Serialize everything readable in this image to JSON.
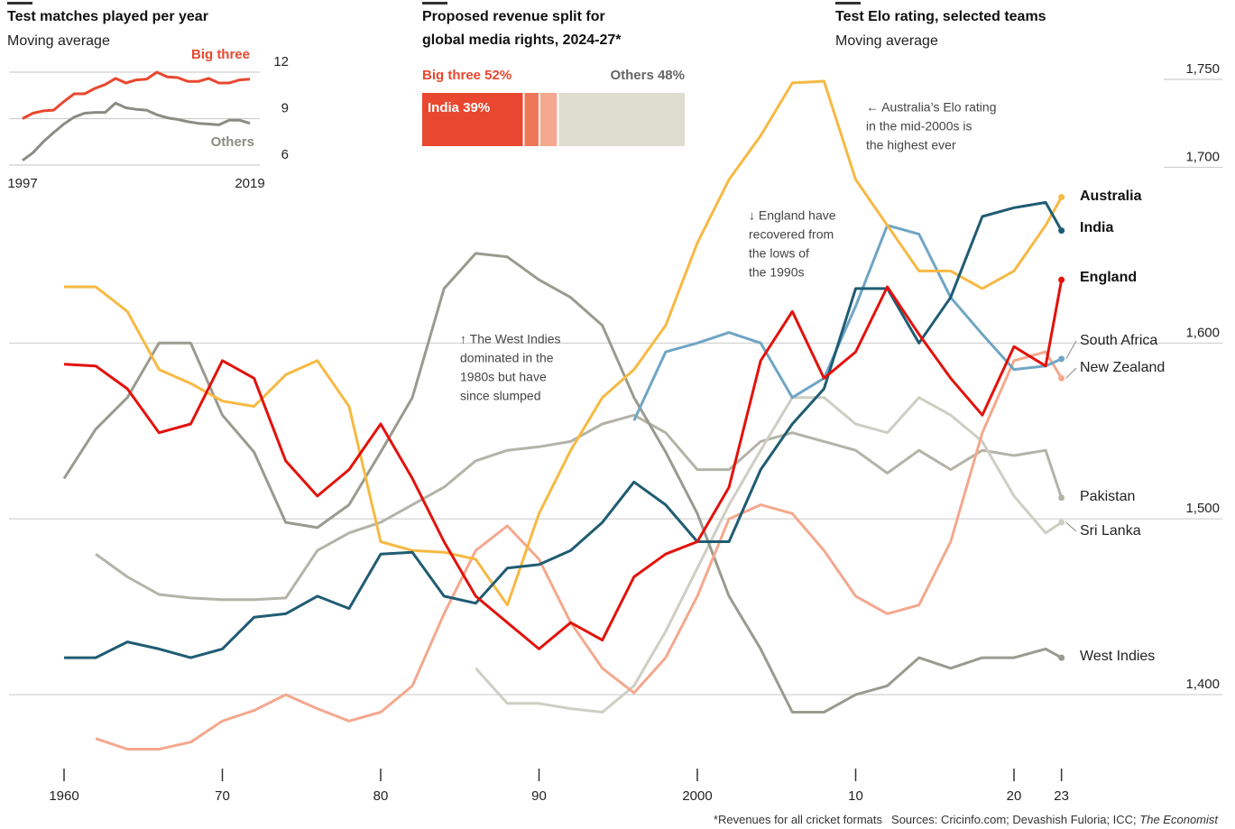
{
  "chart_data": [
    {
      "type": "line",
      "title": "Test matches played per year",
      "subtitle": "Moving average",
      "x": [
        1997,
        1998,
        1999,
        2000,
        2001,
        2002,
        2003,
        2004,
        2005,
        2006,
        2007,
        2008,
        2009,
        2010,
        2011,
        2012,
        2013,
        2014,
        2015,
        2016,
        2017,
        2018,
        2019
      ],
      "series": [
        {
          "name": "Big three",
          "color": "#e9472f",
          "values": [
            9.0,
            9.35,
            9.5,
            9.55,
            10.1,
            10.6,
            10.6,
            10.95,
            11.2,
            11.6,
            11.3,
            11.5,
            11.55,
            12.0,
            11.7,
            11.65,
            11.4,
            11.4,
            11.6,
            11.3,
            11.3,
            11.5,
            11.55
          ]
        },
        {
          "name": "Others",
          "color": "#8c8c84",
          "values": [
            6.3,
            6.8,
            7.5,
            8.1,
            8.65,
            9.1,
            9.35,
            9.4,
            9.4,
            10.0,
            9.7,
            9.6,
            9.55,
            9.25,
            9.05,
            8.95,
            8.8,
            8.7,
            8.65,
            8.6,
            8.9,
            8.9,
            8.7
          ]
        }
      ],
      "xlim": [
        1997,
        2019
      ],
      "xticks": [
        1997,
        2019
      ],
      "ylim": [
        6,
        12
      ],
      "yticks": [
        6,
        9,
        12
      ],
      "grid": true
    },
    {
      "type": "stacked-bar",
      "title": [
        "Proposed revenue split for",
        "global media rights, 2024-27*"
      ],
      "values": [
        39,
        6,
        7,
        48
      ],
      "value_labels": [
        "India 39%",
        null,
        null,
        null
      ],
      "colors": [
        "#e9472f",
        "#ef7659",
        "#f4a88d",
        "#dfdcd0"
      ],
      "groups": [
        {
          "label": "Big three 52%",
          "value": 52,
          "color": "#e9472f"
        },
        {
          "label": "Others 48%",
          "value": 48,
          "color": "#666"
        }
      ],
      "xlim": [
        0,
        100
      ]
    },
    {
      "type": "line",
      "title": "Test Elo rating, selected teams",
      "subtitle": "Moving average",
      "x": [
        1960,
        1962,
        1964,
        1966,
        1968,
        1970,
        1972,
        1974,
        1976,
        1978,
        1980,
        1982,
        1984,
        1986,
        1988,
        1990,
        1992,
        1994,
        1996,
        1998,
        2000,
        2002,
        2004,
        2006,
        2008,
        2010,
        2012,
        2014,
        2016,
        2018,
        2020,
        2022,
        2023
      ],
      "series": [
        {
          "name": "Pakistan",
          "color": "#b4b3a8",
          "values": [
            null,
            1480,
            1467,
            1457,
            1455,
            1454,
            1454,
            1455,
            1482,
            1492,
            1498,
            1508,
            1518,
            1533,
            1539,
            1541,
            1544,
            1554,
            1559,
            1549,
            1528,
            1528,
            1544,
            1549,
            1544,
            1539,
            1526,
            1539,
            1528,
            1539,
            1536,
            1539,
            1512
          ]
        },
        {
          "name": "Sri Lanka",
          "color": "#cfcec4",
          "values": [
            null,
            null,
            null,
            null,
            null,
            null,
            null,
            null,
            null,
            null,
            null,
            null,
            null,
            1415,
            1395,
            1395,
            1392,
            1390,
            1405,
            1436,
            1472,
            1508,
            1539,
            1569,
            1569,
            1554,
            1549,
            1569,
            1559,
            1544,
            1513,
            1492,
            1498
          ]
        },
        {
          "name": "West Indies",
          "color": "#9a9a8f",
          "values": [
            1523,
            1551,
            1569,
            1600,
            1600,
            1559,
            1538,
            1498,
            1495,
            1508,
            1538,
            1569,
            1631,
            1651,
            1649,
            1636,
            1626,
            1610,
            1569,
            1538,
            1503,
            1456,
            1426,
            1390,
            1390,
            1400,
            1405,
            1421,
            1415,
            1421,
            1421,
            1426,
            1421
          ]
        },
        {
          "name": "New Zealand",
          "color": "#f4a88d",
          "values": [
            null,
            1375,
            1369,
            1369,
            1373,
            1385,
            1391,
            1400,
            1392,
            1385,
            1390,
            1405,
            1446,
            1482,
            1496,
            1477,
            1441,
            1415,
            1401,
            1421,
            1456,
            1500,
            1508,
            1503,
            1482,
            1456,
            1446,
            1451,
            1487,
            1549,
            1590,
            1595,
            1580
          ]
        },
        {
          "name": "South Africa",
          "color": "#6fa5c4",
          "values": [
            null,
            null,
            null,
            null,
            null,
            null,
            null,
            null,
            null,
            null,
            null,
            null,
            null,
            null,
            null,
            null,
            null,
            null,
            1556,
            1595,
            1600,
            1606,
            1600,
            1569,
            1580,
            1621,
            1667,
            1662,
            1626,
            1605,
            1585,
            1587,
            1591
          ]
        },
        {
          "name": "Australia",
          "color": "#f7b943",
          "bold": true,
          "values": [
            1632,
            1632,
            1618,
            1585,
            1577,
            1567,
            1564,
            1582,
            1590,
            1564,
            1487,
            1482,
            1481,
            1477,
            1451,
            1503,
            1539,
            1569,
            1585,
            1610,
            1657,
            1693,
            1718,
            1748,
            1749,
            1693,
            1667,
            1641,
            1641,
            1631,
            1641,
            1667,
            1683
          ]
        },
        {
          "name": "India",
          "color": "#1f5c73",
          "bold": true,
          "values": [
            1421,
            1421,
            1430,
            1426,
            1421,
            1426,
            1444,
            1446,
            1456,
            1449,
            1480,
            1481,
            1456,
            1452,
            1472,
            1474,
            1482,
            1498,
            1521,
            1508,
            1487,
            1487,
            1528,
            1554,
            1574,
            1631,
            1631,
            1600,
            1626,
            1672,
            1677,
            1680,
            1664
          ]
        },
        {
          "name": "England",
          "color": "#e3120b",
          "bold": true,
          "values": [
            1588,
            1587,
            1574,
            1549,
            1554,
            1590,
            1580,
            1533,
            1513,
            1528,
            1554,
            1523,
            1487,
            1456,
            1441,
            1426,
            1441,
            1431,
            1467,
            1480,
            1487,
            1518,
            1590,
            1618,
            1580,
            1595,
            1632,
            1605,
            1580,
            1559,
            1598,
            1587,
            1636
          ]
        }
      ],
      "xlim": [
        1958,
        2025
      ],
      "xticks": [
        {
          "value": 1960,
          "label": "1960"
        },
        {
          "value": 1970,
          "label": "70"
        },
        {
          "value": 1980,
          "label": "80"
        },
        {
          "value": 1990,
          "label": "90"
        },
        {
          "value": 2000,
          "label": "2000"
        },
        {
          "value": 2010,
          "label": "10"
        },
        {
          "value": 2020,
          "label": "20"
        },
        {
          "value": 2023,
          "label": "23"
        }
      ],
      "ylim": [
        1360,
        1765
      ],
      "yticks": [
        {
          "value": 1400,
          "label": "1,400"
        },
        {
          "value": 1500,
          "label": "1,500"
        },
        {
          "value": 1600,
          "label": "1,600"
        },
        {
          "value": 1700,
          "label": "1,700"
        },
        {
          "value": 1750,
          "label": "1,750"
        }
      ],
      "grid": true,
      "annotations": [
        [
          "↑ The West Indies",
          "dominated in the",
          "1980s but have",
          "since slumped"
        ],
        [
          "↓ England have",
          "recovered from",
          "the lows of",
          "the 1990s"
        ],
        [
          "← Australia’s Elo rating",
          "in the mid-2000s is",
          "the highest ever"
        ]
      ]
    }
  ],
  "footnote": "*Revenues for all cricket formats",
  "source": "Sources: Cricinfo.com; Devashish Fuloria; ICC; ",
  "source_italic": "The Economist"
}
